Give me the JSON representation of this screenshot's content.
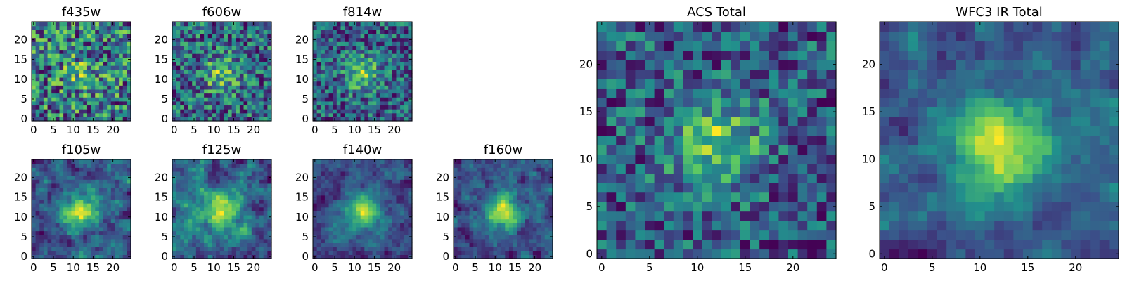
{
  "figure": {
    "colormap": "viridis",
    "grid_size": 25,
    "colors": [
      "#440154",
      "#3b528b",
      "#21918c",
      "#5ec962",
      "#fde725"
    ]
  },
  "chart_data": [
    {
      "type": "heatmap",
      "title": "f435w",
      "noise": 0.95,
      "peak": 0.25,
      "blur": 0,
      "seed": 11,
      "xticks": [
        "0",
        "5",
        "10",
        "15",
        "20"
      ],
      "yticks": [
        "0",
        "5",
        "10",
        "15",
        "20"
      ]
    },
    {
      "type": "heatmap",
      "title": "f606w",
      "noise": 0.85,
      "peak": 0.45,
      "blur": 0,
      "seed": 23,
      "xticks": [
        "0",
        "5",
        "10",
        "15",
        "20"
      ],
      "yticks": [
        "0",
        "5",
        "10",
        "15",
        "20"
      ]
    },
    {
      "type": "heatmap",
      "title": "f814w",
      "noise": 0.8,
      "peak": 0.55,
      "blur": 0,
      "seed": 37,
      "xticks": [
        "0",
        "5",
        "10",
        "15",
        "20"
      ],
      "yticks": [
        "0",
        "5",
        "10",
        "15",
        "20"
      ]
    },
    {
      "type": "heatmap",
      "title": "f105w",
      "noise": 0.6,
      "peak": 0.45,
      "blur": 1,
      "seed": 41,
      "xticks": [
        "0",
        "5",
        "10",
        "15",
        "20"
      ],
      "yticks": [
        "0",
        "5",
        "10",
        "15",
        "20"
      ]
    },
    {
      "type": "heatmap",
      "title": "f125w",
      "noise": 0.65,
      "peak": 0.4,
      "blur": 1,
      "seed": 53,
      "xticks": [
        "0",
        "5",
        "10",
        "15",
        "20"
      ],
      "yticks": [
        "0",
        "5",
        "10",
        "15",
        "20"
      ]
    },
    {
      "type": "heatmap",
      "title": "f140w",
      "noise": 0.6,
      "peak": 0.55,
      "blur": 1,
      "seed": 67,
      "xticks": [
        "0",
        "5",
        "10",
        "15",
        "20"
      ],
      "yticks": [
        "0",
        "5",
        "10",
        "15",
        "20"
      ]
    },
    {
      "type": "heatmap",
      "title": "f160w",
      "noise": 0.65,
      "peak": 0.6,
      "blur": 1,
      "seed": 79,
      "xticks": [
        "0",
        "5",
        "10",
        "15",
        "20"
      ],
      "yticks": [
        "0",
        "5",
        "10",
        "15",
        "20"
      ]
    },
    {
      "type": "heatmap",
      "title": "ACS Total",
      "noise": 0.7,
      "peak": 0.6,
      "blur": 0,
      "seed": 83,
      "xticks": [
        "0",
        "5",
        "10",
        "15",
        "20"
      ],
      "yticks": [
        "0",
        "5",
        "10",
        "15",
        "20"
      ]
    },
    {
      "type": "heatmap",
      "title": "WFC3 IR Total",
      "noise": 0.55,
      "peak": 0.6,
      "blur": 1,
      "seed": 97,
      "xticks": [
        "0",
        "5",
        "10",
        "15",
        "20"
      ],
      "yticks": [
        "0",
        "5",
        "10",
        "15",
        "20"
      ]
    }
  ]
}
